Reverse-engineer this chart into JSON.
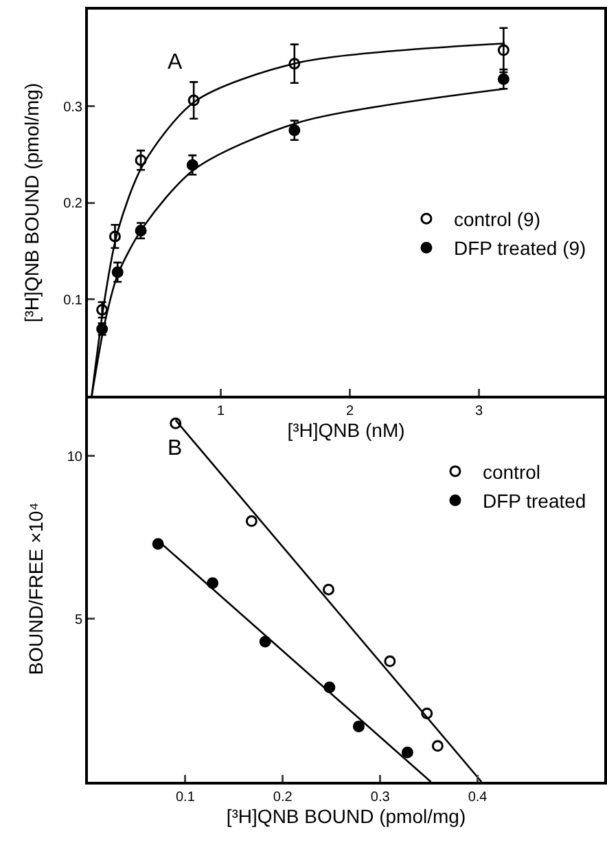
{
  "chart_data": [
    {
      "type": "scatter",
      "xlabel": "[³H]QNB (nM)",
      "ylabel": "[³H]QNB BOUND (pmol/mg)",
      "annotations": [
        "A"
      ],
      "xlim": [
        -0.03,
        3.97
      ],
      "xticks": [
        1,
        2,
        3
      ],
      "ylim": [
        0,
        0.4
      ],
      "yticks": [
        0.1,
        0.2,
        0.3
      ],
      "grid": false,
      "legend": "right",
      "series": [
        {
          "name": "control (9)",
          "color": "#000000",
          "marker": "circle-open",
          "x": [
            0.08,
            0.18,
            0.38,
            0.79,
            1.57,
            3.19
          ],
          "values": [
            0.089,
            0.165,
            0.244,
            0.306,
            0.344,
            0.358
          ],
          "errors": [
            0.008,
            0.012,
            0.01,
            0.019,
            0.02,
            0.023
          ]
        },
        {
          "name": "DFP treated (9)",
          "color": "#000000",
          "marker": "circle",
          "x": [
            0.08,
            0.2,
            0.38,
            0.78,
            1.57,
            3.19
          ],
          "values": [
            0.069,
            0.128,
            0.171,
            0.239,
            0.275,
            0.328
          ],
          "errors": [
            0.006,
            0.01,
            0.008,
            0.01,
            0.01,
            0.01
          ]
        },
        {
          "type": "line",
          "color": "#000000",
          "marker": "none",
          "x": [
            0,
            0.1,
            0.2,
            0.4,
            0.8,
            1.6,
            3.2
          ],
          "values": [
            0,
            0.1,
            0.17,
            0.24,
            0.305,
            0.345,
            0.365
          ]
        },
        {
          "type": "line",
          "color": "#000000",
          "marker": "none",
          "x": [
            0,
            0.1,
            0.2,
            0.4,
            0.8,
            1.6,
            3.2
          ],
          "values": [
            0,
            0.075,
            0.125,
            0.175,
            0.235,
            0.283,
            0.318
          ]
        }
      ]
    },
    {
      "type": "scatter",
      "xlabel": "[³H]QNB BOUND (pmol/mg)",
      "ylabel": "BOUND/FREE ×10⁴",
      "annotations": [
        "B"
      ],
      "xlim": [
        0,
        0.53
      ],
      "xticks": [
        0.1,
        0.2,
        0.3,
        0.4
      ],
      "ylim": [
        0,
        11.85
      ],
      "yticks": [
        5,
        10
      ],
      "grid": false,
      "legend": "top right",
      "series": [
        {
          "name": "control",
          "color": "#000000",
          "marker": "circle-open",
          "x": [
            0.09,
            0.168,
            0.247,
            0.31,
            0.348,
            0.359
          ],
          "values": [
            11.0,
            8.0,
            5.9,
            3.7,
            2.1,
            1.1
          ]
        },
        {
          "name": "DFP treated",
          "color": "#000000",
          "marker": "circle",
          "x": [
            0.072,
            0.128,
            0.182,
            0.248,
            0.278,
            0.328
          ],
          "values": [
            7.3,
            6.1,
            4.3,
            2.9,
            1.7,
            0.9
          ]
        },
        {
          "type": "line",
          "color": "#000000",
          "marker": "none",
          "x": [
            0.09,
            0.404
          ],
          "values": [
            11.1,
            0
          ]
        },
        {
          "type": "line",
          "color": "#000000",
          "marker": "none",
          "x": [
            0.072,
            0.352
          ],
          "values": [
            7.4,
            0
          ]
        }
      ]
    }
  ]
}
